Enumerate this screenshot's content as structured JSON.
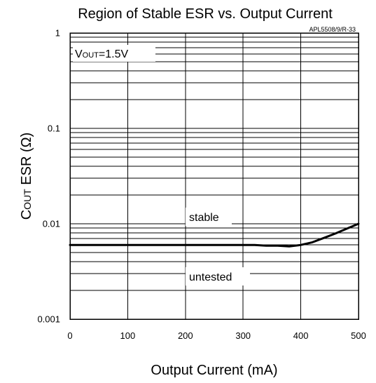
{
  "chart_data": {
    "type": "line",
    "title": "Region of Stable ESR vs. Output Current",
    "figure_code": "APL5508/9/R-33",
    "xlabel": "Output Current (mA)",
    "ylabel_prefix": "C",
    "ylabel_subscript": "OUT",
    "ylabel_suffix": " ESR (Ω)",
    "condition_prefix": "V",
    "condition_subscript": "OUT",
    "condition_suffix": "=1.5V",
    "xlim": [
      0,
      500
    ],
    "ylim": [
      0.001,
      1
    ],
    "x_scale": "linear",
    "y_scale": "log",
    "grid": true,
    "x_ticks": [
      0,
      100,
      200,
      300,
      400,
      500
    ],
    "x_tick_labels": [
      "0",
      "100",
      "200",
      "300",
      "400",
      "500"
    ],
    "y_ticks": [
      0.001,
      0.01,
      0.1,
      1
    ],
    "y_tick_labels": [
      "0.001",
      "0.01",
      "0.1",
      "1"
    ],
    "annotations": {
      "upper": "stable",
      "lower": "untested"
    },
    "series": [
      {
        "x": [
          0,
          100,
          200,
          300,
          320,
          340,
          360,
          380,
          400,
          420,
          440,
          460,
          480,
          500
        ],
        "y": [
          0.006,
          0.006,
          0.006,
          0.006,
          0.006,
          0.0059,
          0.0059,
          0.0058,
          0.006,
          0.0064,
          0.0071,
          0.0079,
          0.0089,
          0.01
        ]
      }
    ],
    "colors": {
      "line": "#000000",
      "grid": "#000000",
      "background": "#ffffff"
    }
  }
}
